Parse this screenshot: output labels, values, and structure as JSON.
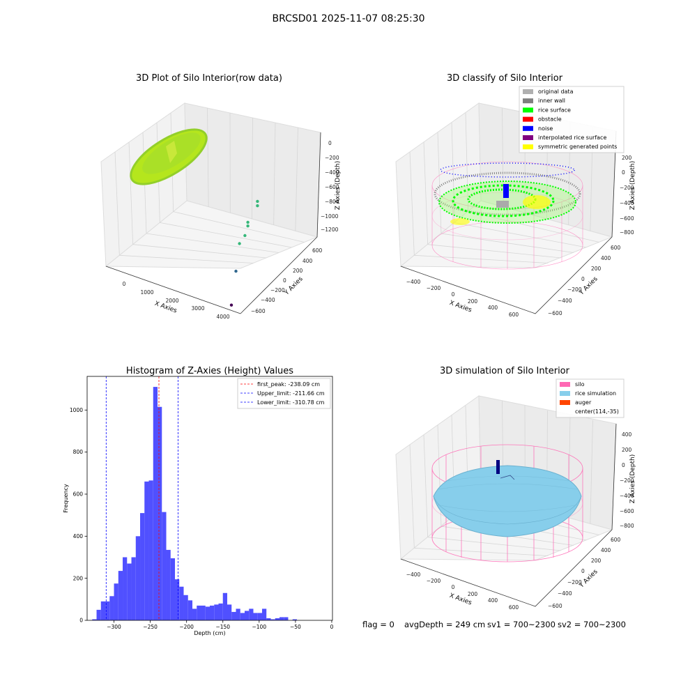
{
  "suptitle": "BRCSD01 2025-11-07 08:25:30",
  "status": {
    "flag": "flag = 0",
    "avg_depth": "avgDepth = 249 cm",
    "sv1": "sv1 = 700~2300",
    "sv2": "sv2 = 700~2300"
  },
  "colors": {
    "hist_bar": "#4c4cff",
    "peak_line": "#ff0000",
    "limit_line": "#0000ff",
    "silo": "#ff69b4",
    "rice_sim": "#87ceeb",
    "auger": "#ff4500",
    "rice_surface": "#00ff00",
    "noise": "#0000ff",
    "inner_wall": "#808080"
  },
  "chart_data": [
    {
      "type": "scatter",
      "title": "3D Plot of Silo Interior(row data)",
      "xlabel": "X Axies",
      "ylabel": "Y Axies",
      "zlabel": "Z Axies (Depth)",
      "x_ticks": [
        "0",
        "1000",
        "2000",
        "3000",
        "4000"
      ],
      "y_ticks": [
        "600",
        "400",
        "200",
        "0",
        "−200",
        "−400",
        "−600"
      ],
      "z_ticks": [
        "0",
        "−200",
        "−400",
        "−600",
        "−800",
        "−1000",
        "−1200"
      ],
      "outliers": [
        {
          "x": 2350,
          "y": 300,
          "z": -640
        },
        {
          "x": 2350,
          "y": 300,
          "z": -700
        },
        {
          "x": 2300,
          "y": 200,
          "z": -860
        },
        {
          "x": 2300,
          "y": 200,
          "z": -910
        },
        {
          "x": 2350,
          "y": 150,
          "z": -1000
        },
        {
          "x": 2300,
          "y": 100,
          "z": -1080
        },
        {
          "x": 3000,
          "y": -150,
          "z": -1200
        },
        {
          "x": 4000,
          "y": -500,
          "z": -1300
        }
      ]
    },
    {
      "type": "scatter",
      "title": "3D classify of Silo Interior",
      "xlabel": "X Axies",
      "ylabel": "Y Axies",
      "zlabel": "Z Axies (Depth)",
      "x_ticks": [
        "−400",
        "−200",
        "0",
        "200",
        "400",
        "600"
      ],
      "y_ticks": [
        "600",
        "400",
        "200",
        "0",
        "−200",
        "−400",
        "−600"
      ],
      "z_ticks": [
        "200",
        "0",
        "−200",
        "−400",
        "−600",
        "−800"
      ],
      "legend": [
        {
          "label": "original data",
          "color": "#b0b0b0"
        },
        {
          "label": "inner wall",
          "color": "#808080"
        },
        {
          "label": "rice surface",
          "color": "#00ff00"
        },
        {
          "label": "obstacle",
          "color": "#ff0000"
        },
        {
          "label": "noise",
          "color": "#0000ff"
        },
        {
          "label": "interpolated rice surface",
          "color": "#800080"
        },
        {
          "label": "symmetric generated points",
          "color": "#ffff00"
        }
      ]
    },
    {
      "type": "bar",
      "title": "Histogram of Z-Axies (Height) Values",
      "xlabel": "Depth (cm)",
      "ylabel": "Frequency",
      "xlim": [
        -337,
        1
      ],
      "ylim": [
        0,
        1160
      ],
      "x_ticks": [
        -300,
        -250,
        -200,
        -150,
        -100,
        -50,
        0
      ],
      "x_tick_labels": [
        "−300",
        "−250",
        "−200",
        "−150",
        "−100",
        "−50",
        "0"
      ],
      "y_ticks": [
        0,
        200,
        400,
        600,
        800,
        1000
      ],
      "bin_start": -330,
      "bin_width": 6,
      "values": [
        5,
        50,
        90,
        90,
        115,
        175,
        235,
        300,
        270,
        300,
        400,
        510,
        660,
        665,
        1110,
        1015,
        515,
        335,
        295,
        195,
        160,
        120,
        95,
        55,
        70,
        70,
        65,
        70,
        75,
        80,
        130,
        75,
        40,
        55,
        35,
        45,
        55,
        35,
        35,
        55,
        10,
        5,
        10,
        15,
        15,
        0,
        5
      ],
      "vlines": [
        {
          "value": -238.09,
          "color": "#ff0000",
          "label": "first_peak: -238.09 cm"
        },
        {
          "value": -211.66,
          "color": "#0000ff",
          "label": "Upper_limit: -211.66 cm"
        },
        {
          "value": -310.78,
          "color": "#0000ff",
          "label": "Lower_limit: -310.78 cm"
        }
      ],
      "legend_loc": "upper right"
    },
    {
      "type": "scatter",
      "title": "3D simulation of Silo Interior",
      "xlabel": "X Axies",
      "ylabel": "Y Axies",
      "zlabel": "Z Axies (Depth)",
      "x_ticks": [
        "−400",
        "−200",
        "0",
        "200",
        "400",
        "600"
      ],
      "y_ticks": [
        "600",
        "400",
        "200",
        "0",
        "−200",
        "−400",
        "−600"
      ],
      "z_ticks": [
        "400",
        "200",
        "0",
        "−200",
        "−400",
        "−600",
        "−800"
      ],
      "legend": [
        {
          "label": "silo",
          "color": "#ff69b4"
        },
        {
          "label": "rice simulation",
          "color": "#87ceeb"
        },
        {
          "label": "auger",
          "color": "#ff4500"
        },
        {
          "label": "center(114,-35)",
          "color": ""
        }
      ]
    }
  ]
}
